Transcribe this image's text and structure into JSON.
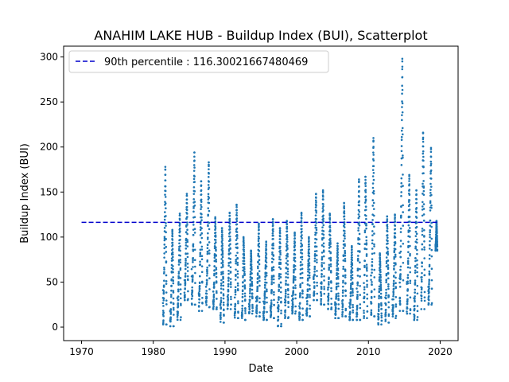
{
  "chart_data": {
    "type": "scatter",
    "title": "ANAHIM LAKE HUB - Buildup Index (BUI), Scatterplot",
    "xlabel": "Date",
    "ylabel": "Buildup Index (BUI)",
    "xlim": [
      1967.5,
      2022.5
    ],
    "ylim": [
      -15,
      312
    ],
    "xticks": [
      1970,
      1980,
      1990,
      2000,
      2010,
      2020
    ],
    "yticks": [
      0,
      50,
      100,
      150,
      200,
      250,
      300
    ],
    "grid": false,
    "legend_position": "top-left",
    "point_color": "#1f77b4",
    "reference_line": {
      "label": "90th percentile : 116.30021667480469",
      "y": 116.30021667480469,
      "x_start": 1970,
      "x_end": 2019.8,
      "color": "#0000cc",
      "style": "dashed"
    },
    "seasons": [
      {
        "start": 1981.35,
        "end": 1981.85,
        "min": 3,
        "peak": 178
      },
      {
        "start": 1982.35,
        "end": 1982.85,
        "min": 1,
        "peak": 108
      },
      {
        "start": 1983.35,
        "end": 1983.85,
        "min": 8,
        "peak": 126
      },
      {
        "start": 1984.35,
        "end": 1984.85,
        "min": 30,
        "peak": 148
      },
      {
        "start": 1985.35,
        "end": 1985.85,
        "min": 25,
        "peak": 194
      },
      {
        "start": 1986.35,
        "end": 1986.85,
        "min": 18,
        "peak": 162
      },
      {
        "start": 1987.35,
        "end": 1987.85,
        "min": 22,
        "peak": 183
      },
      {
        "start": 1988.35,
        "end": 1988.85,
        "min": 20,
        "peak": 122
      },
      {
        "start": 1989.35,
        "end": 1989.85,
        "min": 5,
        "peak": 110
      },
      {
        "start": 1990.35,
        "end": 1990.85,
        "min": 20,
        "peak": 127
      },
      {
        "start": 1991.35,
        "end": 1991.85,
        "min": 10,
        "peak": 136
      },
      {
        "start": 1992.35,
        "end": 1992.85,
        "min": 8,
        "peak": 100
      },
      {
        "start": 1993.35,
        "end": 1993.85,
        "min": 15,
        "peak": 85
      },
      {
        "start": 1994.35,
        "end": 1994.85,
        "min": 12,
        "peak": 115
      },
      {
        "start": 1995.35,
        "end": 1995.85,
        "min": 8,
        "peak": 95
      },
      {
        "start": 1996.35,
        "end": 1996.85,
        "min": 10,
        "peak": 120
      },
      {
        "start": 1997.35,
        "end": 1997.85,
        "min": 1,
        "peak": 110
      },
      {
        "start": 1998.35,
        "end": 1998.85,
        "min": 10,
        "peak": 118
      },
      {
        "start": 1999.35,
        "end": 1999.85,
        "min": 15,
        "peak": 105
      },
      {
        "start": 2000.35,
        "end": 2000.85,
        "min": 8,
        "peak": 127
      },
      {
        "start": 2001.35,
        "end": 2001.85,
        "min": 12,
        "peak": 100
      },
      {
        "start": 2002.35,
        "end": 2002.85,
        "min": 30,
        "peak": 148
      },
      {
        "start": 2003.35,
        "end": 2003.85,
        "min": 25,
        "peak": 152
      },
      {
        "start": 2004.35,
        "end": 2004.85,
        "min": 20,
        "peak": 126
      },
      {
        "start": 2005.35,
        "end": 2005.85,
        "min": 10,
        "peak": 93
      },
      {
        "start": 2006.35,
        "end": 2006.85,
        "min": 12,
        "peak": 138
      },
      {
        "start": 2007.35,
        "end": 2007.85,
        "min": 8,
        "peak": 90
      },
      {
        "start": 2008.35,
        "end": 2008.85,
        "min": 8,
        "peak": 164
      },
      {
        "start": 2009.35,
        "end": 2009.85,
        "min": 10,
        "peak": 167
      },
      {
        "start": 2010.35,
        "end": 2010.85,
        "min": 12,
        "peak": 210
      },
      {
        "start": 2011.35,
        "end": 2011.85,
        "min": 3,
        "peak": 82
      },
      {
        "start": 2012.35,
        "end": 2012.85,
        "min": 5,
        "peak": 123
      },
      {
        "start": 2013.35,
        "end": 2013.85,
        "min": 10,
        "peak": 125
      },
      {
        "start": 2014.35,
        "end": 2014.85,
        "min": 18,
        "peak": 298
      },
      {
        "start": 2015.35,
        "end": 2015.85,
        "min": 15,
        "peak": 169
      },
      {
        "start": 2016.35,
        "end": 2016.85,
        "min": 8,
        "peak": 152
      },
      {
        "start": 2017.35,
        "end": 2017.85,
        "min": 20,
        "peak": 216
      },
      {
        "start": 2018.35,
        "end": 2018.85,
        "min": 25,
        "peak": 199
      },
      {
        "start": 2019.35,
        "end": 2019.6,
        "min": 85,
        "peak": 118
      }
    ]
  }
}
